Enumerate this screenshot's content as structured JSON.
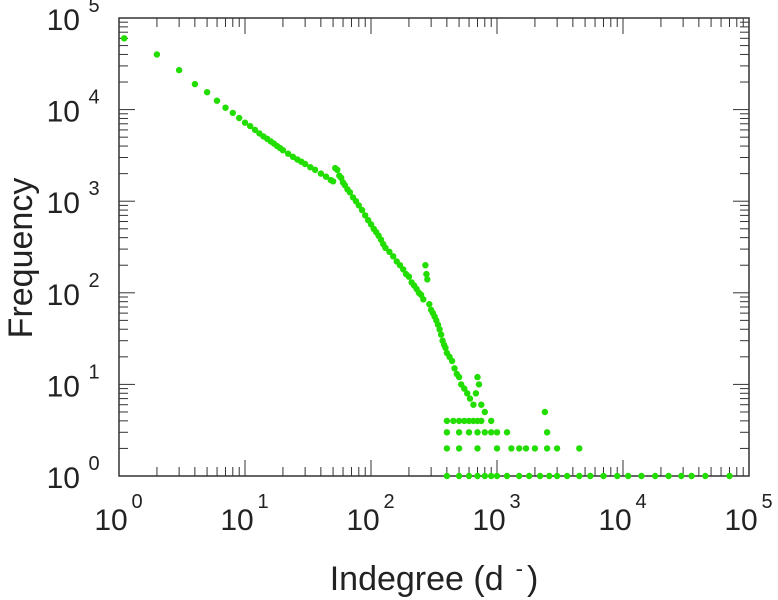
{
  "chart_data": {
    "type": "scatter",
    "xlabel": "Indegree (d",
    "xlabel_superscript": "-",
    "xlabel_close": ")",
    "ylabel": "Frequency",
    "x_scale": "log",
    "y_scale": "log",
    "xlim": [
      1,
      100000
    ],
    "ylim": [
      1,
      100000
    ],
    "x_ticks": [
      {
        "base": "10",
        "exp": "0"
      },
      {
        "base": "10",
        "exp": "1"
      },
      {
        "base": "10",
        "exp": "2"
      },
      {
        "base": "10",
        "exp": "3"
      },
      {
        "base": "10",
        "exp": "4"
      },
      {
        "base": "10",
        "exp": "5"
      }
    ],
    "y_ticks": [
      {
        "base": "10",
        "exp": "0"
      },
      {
        "base": "10",
        "exp": "1"
      },
      {
        "base": "10",
        "exp": "2"
      },
      {
        "base": "10",
        "exp": "3"
      },
      {
        "base": "10",
        "exp": "4"
      },
      {
        "base": "10",
        "exp": "5"
      }
    ],
    "grid": false,
    "marker_color": "#22dd00",
    "series": [
      {
        "points": [
          [
            1.1,
            60000
          ],
          [
            2,
            40000
          ],
          [
            3,
            27000
          ],
          [
            4,
            19000
          ],
          [
            5,
            15500
          ],
          [
            6,
            12500
          ],
          [
            7,
            10500
          ],
          [
            8,
            9200
          ],
          [
            9,
            8100
          ],
          [
            10,
            7200
          ],
          [
            11,
            6600
          ],
          [
            12,
            6000
          ],
          [
            13,
            5500
          ],
          [
            14,
            5100
          ],
          [
            15,
            4800
          ],
          [
            16,
            4500
          ],
          [
            17,
            4250
          ],
          [
            18,
            4000
          ],
          [
            19,
            3800
          ],
          [
            20,
            3600
          ],
          [
            22,
            3300
          ],
          [
            24,
            3050
          ],
          [
            26,
            2850
          ],
          [
            28,
            2700
          ],
          [
            30,
            2550
          ],
          [
            33,
            2350
          ],
          [
            36,
            2200
          ],
          [
            40,
            2000
          ],
          [
            44,
            1850
          ],
          [
            48,
            1700
          ],
          [
            50,
            1650
          ],
          [
            52,
            2300
          ],
          [
            54,
            2200
          ],
          [
            56,
            1900
          ],
          [
            58,
            1800
          ],
          [
            60,
            1600
          ],
          [
            62,
            1500
          ],
          [
            65,
            1350
          ],
          [
            68,
            1250
          ],
          [
            72,
            1100
          ],
          [
            76,
            1000
          ],
          [
            80,
            900
          ],
          [
            85,
            800
          ],
          [
            90,
            700
          ],
          [
            95,
            620
          ],
          [
            100,
            560
          ],
          [
            105,
            500
          ],
          [
            110,
            460
          ],
          [
            115,
            420
          ],
          [
            120,
            380
          ],
          [
            125,
            340
          ],
          [
            130,
            310
          ],
          [
            140,
            280
          ],
          [
            150,
            250
          ],
          [
            160,
            220
          ],
          [
            170,
            200
          ],
          [
            180,
            180
          ],
          [
            190,
            160
          ],
          [
            200,
            150
          ],
          [
            210,
            130
          ],
          [
            220,
            120
          ],
          [
            230,
            110
          ],
          [
            240,
            100
          ],
          [
            250,
            95
          ],
          [
            260,
            85
          ],
          [
            270,
            200
          ],
          [
            275,
            160
          ],
          [
            280,
            140
          ],
          [
            290,
            75
          ],
          [
            300,
            65
          ],
          [
            310,
            60
          ],
          [
            320,
            55
          ],
          [
            330,
            50
          ],
          [
            340,
            45
          ],
          [
            350,
            40
          ],
          [
            360,
            35
          ],
          [
            370,
            30
          ],
          [
            380,
            27
          ],
          [
            390,
            25
          ],
          [
            400,
            22
          ],
          [
            420,
            20
          ],
          [
            440,
            18
          ],
          [
            460,
            15
          ],
          [
            480,
            13
          ],
          [
            500,
            12
          ],
          [
            520,
            10
          ],
          [
            550,
            9
          ],
          [
            580,
            8
          ],
          [
            610,
            7
          ],
          [
            650,
            6
          ],
          [
            700,
            12
          ],
          [
            720,
            10
          ],
          [
            680,
            8
          ],
          [
            750,
            6
          ],
          [
            800,
            5
          ],
          [
            900,
            4
          ],
          [
            1000,
            3
          ],
          [
            1200,
            3
          ],
          [
            1500,
            2
          ],
          [
            2000,
            2
          ],
          [
            2400,
            5
          ],
          [
            2500,
            3
          ],
          [
            3000,
            2
          ],
          [
            4500,
            2
          ],
          [
            400,
            4
          ],
          [
            450,
            4
          ],
          [
            500,
            4
          ],
          [
            550,
            4
          ],
          [
            600,
            4
          ],
          [
            650,
            4
          ],
          [
            700,
            4
          ],
          [
            750,
            4
          ],
          [
            400,
            3
          ],
          [
            500,
            3
          ],
          [
            600,
            3
          ],
          [
            700,
            3
          ],
          [
            800,
            3
          ],
          [
            900,
            3
          ],
          [
            400,
            2
          ],
          [
            500,
            2
          ],
          [
            700,
            2
          ],
          [
            1000,
            2
          ],
          [
            1300,
            2
          ],
          [
            1700,
            2
          ],
          [
            2500,
            2
          ],
          [
            400,
            1
          ],
          [
            500,
            1
          ],
          [
            600,
            1
          ],
          [
            700,
            1
          ],
          [
            800,
            1
          ],
          [
            900,
            1
          ],
          [
            1000,
            1
          ],
          [
            1200,
            1
          ],
          [
            1500,
            1
          ],
          [
            1800,
            1
          ],
          [
            2200,
            1
          ],
          [
            2600,
            1
          ],
          [
            3000,
            1
          ],
          [
            3600,
            1
          ],
          [
            4500,
            1
          ],
          [
            5500,
            1
          ],
          [
            7000,
            1
          ],
          [
            9000,
            1
          ],
          [
            11000,
            1
          ],
          [
            14000,
            1
          ],
          [
            18000,
            1
          ],
          [
            23000,
            1
          ],
          [
            29000,
            1
          ],
          [
            35000,
            1
          ],
          [
            45000,
            1
          ],
          [
            70000,
            1
          ]
        ]
      }
    ]
  }
}
